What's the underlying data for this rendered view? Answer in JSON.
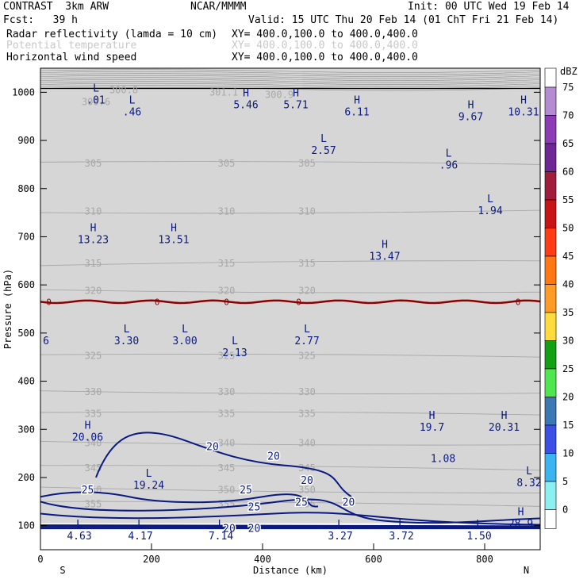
{
  "header": {
    "model": "CONTRAST  3km ARW",
    "org": "NCAR/MMMM",
    "init": "Init: 00 UTC Wed 19 Feb 14",
    "fcst": "Fcst:   39 h",
    "valid": "Valid: 15 UTC Thu 20 Feb 14 (01 ChT Fri 21 Feb 14)",
    "field1": "Radar reflectivity (lamda = 10 cm)",
    "field1_xy": "XY= 400.0,100.0 to 400.0,400.0",
    "field2": "Potential temperature",
    "field2_xy": "XY= 400.0,100.0 to 400.0,400.0",
    "field3": "Horizontal wind speed",
    "field3_xy": "XY= 400.0,100.0 to 400.0,400.0"
  },
  "colors": {
    "wind": "#0a1a80",
    "theta": "#a8a8a8",
    "freezing": "#8b0000",
    "upper_gray": "#b4b4b4"
  },
  "chart_data": {
    "type": "heatmap",
    "title": "Radar reflectivity (lamda = 10 cm) / Potential temperature / Horizontal wind speed",
    "xlabel": "Distance (km)",
    "ylabel": "Pressure (hPa)",
    "xlim": [
      0,
      900
    ],
    "ylim": [
      1050,
      50
    ],
    "x_ticks": [
      "0",
      "200",
      "400",
      "600",
      "800"
    ],
    "x_tick_values": [
      0,
      200,
      400,
      600,
      800
    ],
    "y_ticks": [
      "100",
      "200",
      "300",
      "400",
      "500",
      "600",
      "700",
      "800",
      "900",
      "1000"
    ],
    "y_tick_values": [
      100,
      200,
      300,
      400,
      500,
      600,
      700,
      800,
      900,
      1000
    ],
    "x_end_labels": {
      "left": "S",
      "right": "N"
    },
    "colorbar": {
      "unit": "dBZ",
      "levels": [
        "75",
        "70",
        "65",
        "60",
        "55",
        "50",
        "45",
        "40",
        "35",
        "30",
        "25",
        "20",
        "15",
        "10",
        "5",
        "0"
      ],
      "colors": [
        "#b48cd2",
        "#8c3cb4",
        "#6e2896",
        "#a01e3c",
        "#c81414",
        "#ff3c14",
        "#ff7814",
        "#ff9c28",
        "#ffdc3c",
        "#14a014",
        "#50e650",
        "#3c78b4",
        "#3c50e6",
        "#3cb4f0",
        "#8cf0f0",
        "#ffffff"
      ]
    },
    "freezing_level": {
      "label": "0",
      "pressure": 565
    },
    "theta_contours": [
      {
        "label": "355",
        "p_left": 150,
        "p_right": 140
      },
      {
        "label": "350",
        "p_left": 180,
        "p_right": 168
      },
      {
        "label": "345",
        "p_left": 225,
        "p_right": 215
      },
      {
        "label": "340",
        "p_left": 275,
        "p_right": 268
      },
      {
        "label": "335",
        "p_left": 335,
        "p_right": 330
      },
      {
        "label": "330",
        "p_left": 380,
        "p_right": 375
      },
      {
        "label": "325",
        "p_left": 455,
        "p_right": 450
      },
      {
        "label": "320",
        "p_left": 590,
        "p_right": 585
      },
      {
        "label": "315",
        "p_left": 640,
        "p_right": 650
      },
      {
        "label": "310",
        "p_left": 750,
        "p_right": 755
      },
      {
        "label": "305",
        "p_left": 855,
        "p_right": 850
      },
      {
        "label": "300.6",
        "p_left": 980,
        "p_right": 980
      },
      {
        "label": "300.8",
        "p_left": 1005,
        "p_right": 1005
      },
      {
        "label": "301.1",
        "p_left": 1000,
        "p_right": 1000
      },
      {
        "label": "300.9",
        "p_left": 995,
        "p_right": 995
      }
    ],
    "wind_contour_labels": [
      "25",
      "25",
      "20",
      "25",
      "20",
      "20",
      "20",
      "20",
      "25",
      "20"
    ],
    "extrema": [
      {
        "type": "L",
        "value": "4.63",
        "x": 70,
        "p": 85
      },
      {
        "type": "L",
        "value": "4.17",
        "x": 180,
        "p": 85
      },
      {
        "type": "L",
        "value": "7.14",
        "x": 325,
        "p": 85
      },
      {
        "type": "L",
        "value": "3.27",
        "x": 540,
        "p": 85
      },
      {
        "type": "L",
        "value": "3.72",
        "x": 650,
        "p": 85
      },
      {
        "type": "L",
        "value": "1.50",
        "x": 790,
        "p": 85
      },
      {
        "type": "H",
        "value": "28.9",
        "x": 865,
        "p": 110
      },
      {
        "type": "L",
        "value": "19.24",
        "x": 195,
        "p": 190
      },
      {
        "type": "L",
        "value": "8.32",
        "x": 880,
        "p": 195
      },
      {
        "type": "H",
        "value": "20.06",
        "x": 85,
        "p": 290
      },
      {
        "type": "",
        "value": "1.08",
        "x": 725,
        "p": 245
      },
      {
        "type": "H",
        "value": "19.7",
        "x": 705,
        "p": 310
      },
      {
        "type": "H",
        "value": "20.31",
        "x": 835,
        "p": 310
      },
      {
        "type": "L",
        "value": "2.13",
        "x": 350,
        "p": 465
      },
      {
        "type": "L",
        "value": "3.30",
        "x": 155,
        "p": 490
      },
      {
        "type": "L",
        "value": "3.00",
        "x": 260,
        "p": 490
      },
      {
        "type": "L",
        "value": "2.77",
        "x": 480,
        "p": 490
      },
      {
        "type": "",
        "value": "6",
        "x": 10,
        "p": 490
      },
      {
        "type": "H",
        "value": "13.47",
        "x": 620,
        "p": 665
      },
      {
        "type": "H",
        "value": "13.23",
        "x": 95,
        "p": 700
      },
      {
        "type": "H",
        "value": "13.51",
        "x": 240,
        "p": 700
      },
      {
        "type": "L",
        "value": "1.94",
        "x": 810,
        "p": 760
      },
      {
        "type": "L",
        "value": ".96",
        "x": 735,
        "p": 855
      },
      {
        "type": "L",
        "value": "2.57",
        "x": 510,
        "p": 885
      },
      {
        "type": "H",
        "value": "9.67",
        "x": 775,
        "p": 955
      },
      {
        "type": "L",
        "value": ".46",
        "x": 165,
        "p": 965
      },
      {
        "type": "H",
        "value": "10.31",
        "x": 870,
        "p": 965
      },
      {
        "type": "H",
        "value": "5.46",
        "x": 370,
        "p": 980
      },
      {
        "type": "H",
        "value": "5.71",
        "x": 460,
        "p": 980
      },
      {
        "type": "H",
        "value": "6.11",
        "x": 570,
        "p": 965
      },
      {
        "type": "L",
        "value": ".01",
        "x": 100,
        "p": 990
      }
    ]
  }
}
